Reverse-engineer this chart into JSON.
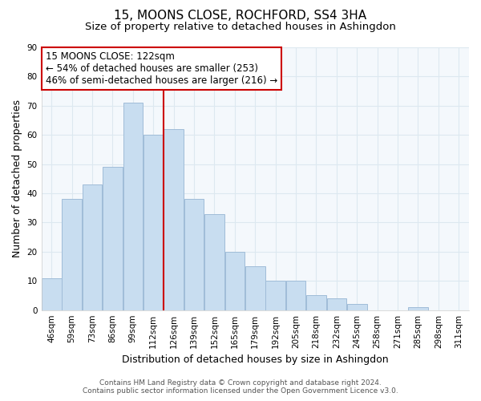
{
  "title": "15, MOONS CLOSE, ROCHFORD, SS4 3HA",
  "subtitle": "Size of property relative to detached houses in Ashingdon",
  "xlabel": "Distribution of detached houses by size in Ashingdon",
  "ylabel": "Number of detached properties",
  "bin_labels": [
    "46sqm",
    "59sqm",
    "73sqm",
    "86sqm",
    "99sqm",
    "112sqm",
    "126sqm",
    "139sqm",
    "152sqm",
    "165sqm",
    "179sqm",
    "192sqm",
    "205sqm",
    "218sqm",
    "232sqm",
    "245sqm",
    "258sqm",
    "271sqm",
    "285sqm",
    "298sqm",
    "311sqm"
  ],
  "bin_counts": [
    11,
    38,
    43,
    49,
    71,
    60,
    62,
    38,
    33,
    20,
    15,
    10,
    10,
    5,
    4,
    2,
    0,
    0,
    1,
    0,
    0
  ],
  "bar_color": "#c8ddf0",
  "bar_edge_color": "#a0bcd8",
  "marker_bin_index": 6,
  "marker_color": "#cc0000",
  "annotation_title": "15 MOONS CLOSE: 122sqm",
  "annotation_line1": "← 54% of detached houses are smaller (253)",
  "annotation_line2": "46% of semi-detached houses are larger (216) →",
  "annotation_box_color": "#ffffff",
  "annotation_box_edge_color": "#cc0000",
  "ylim": [
    0,
    90
  ],
  "yticks": [
    0,
    10,
    20,
    30,
    40,
    50,
    60,
    70,
    80,
    90
  ],
  "footer_line1": "Contains HM Land Registry data © Crown copyright and database right 2024.",
  "footer_line2": "Contains public sector information licensed under the Open Government Licence v3.0.",
  "bg_color": "#ffffff",
  "plot_bg_color": "#f4f8fc",
  "grid_color": "#dde8f0",
  "title_fontsize": 11,
  "subtitle_fontsize": 9.5,
  "xlabel_fontsize": 9,
  "ylabel_fontsize": 9,
  "tick_fontsize": 7.5,
  "footer_fontsize": 6.5,
  "annotation_fontsize": 8.5
}
